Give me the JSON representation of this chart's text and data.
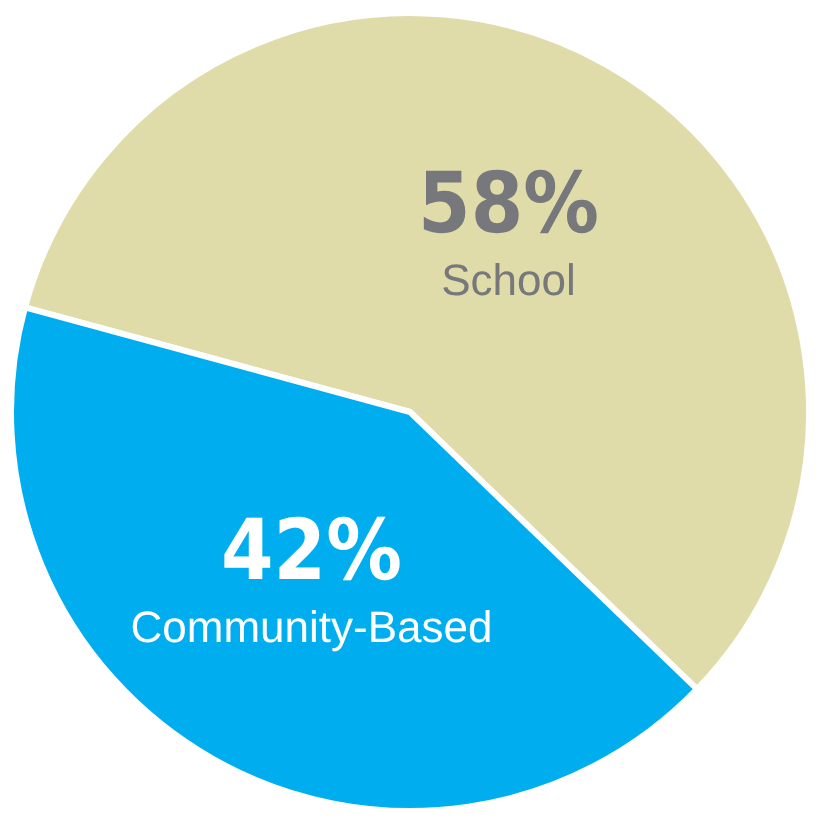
{
  "chart_data": {
    "type": "pie",
    "categories": [
      "School",
      "Community-Based"
    ],
    "values": [
      58,
      42
    ],
    "colors": [
      "#e0dcaa",
      "#00aeef"
    ],
    "value_labels": [
      "58%",
      "42%"
    ],
    "legend": false
  }
}
